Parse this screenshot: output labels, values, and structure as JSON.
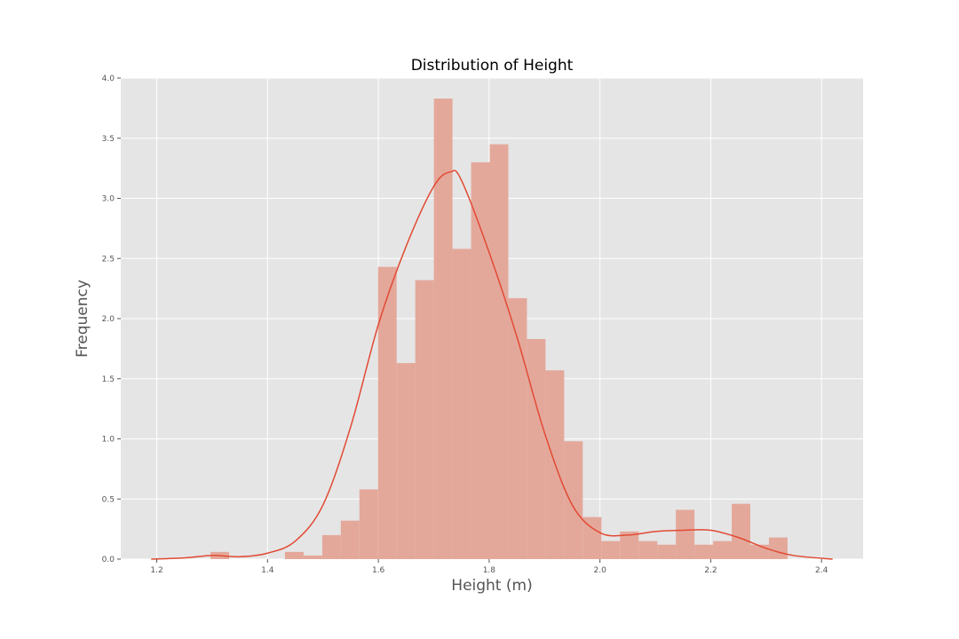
{
  "chart_data": {
    "type": "bar",
    "title": "Distribution of Height",
    "xlabel": "Height (m)",
    "ylabel": "Frequency",
    "xlim": [
      1.135,
      2.475
    ],
    "ylim": [
      0,
      4.0
    ],
    "x_ticks": [
      "1.2",
      "1.4",
      "1.6",
      "1.8",
      "2.0",
      "2.2",
      "2.4"
    ],
    "y_ticks": [
      "0.0",
      "0.5",
      "1.0",
      "1.5",
      "2.0",
      "2.5",
      "3.0",
      "3.5",
      "4.0"
    ],
    "grid": true,
    "bin_start": 1.297,
    "bin_width": 0.0336,
    "values": [
      0.06,
      0,
      0,
      0,
      0.06,
      0.03,
      0.2,
      0.32,
      0.58,
      2.43,
      1.63,
      2.32,
      3.83,
      2.58,
      3.3,
      3.45,
      2.17,
      1.83,
      1.57,
      0.98,
      0.35,
      0.15,
      0.23,
      0.15,
      0.12,
      0.41,
      0.12,
      0.15,
      0.46,
      0.12,
      0.18
    ],
    "kde": {
      "x": [
        1.19,
        1.25,
        1.3,
        1.35,
        1.4,
        1.45,
        1.5,
        1.55,
        1.6,
        1.65,
        1.7,
        1.73,
        1.75,
        1.8,
        1.85,
        1.9,
        1.95,
        2.0,
        2.05,
        2.1,
        2.15,
        2.2,
        2.25,
        2.3,
        2.35,
        2.42
      ],
      "y": [
        0.0,
        0.01,
        0.03,
        0.02,
        0.05,
        0.15,
        0.45,
        1.1,
        1.95,
        2.6,
        3.1,
        3.22,
        3.15,
        2.55,
        1.85,
        1.05,
        0.45,
        0.22,
        0.2,
        0.23,
        0.24,
        0.24,
        0.18,
        0.09,
        0.03,
        0.0
      ]
    },
    "colors": {
      "background": "#e5e5e5",
      "grid": "#ffffff",
      "bar": "#e4a89b",
      "line": "#e24a33"
    }
  }
}
